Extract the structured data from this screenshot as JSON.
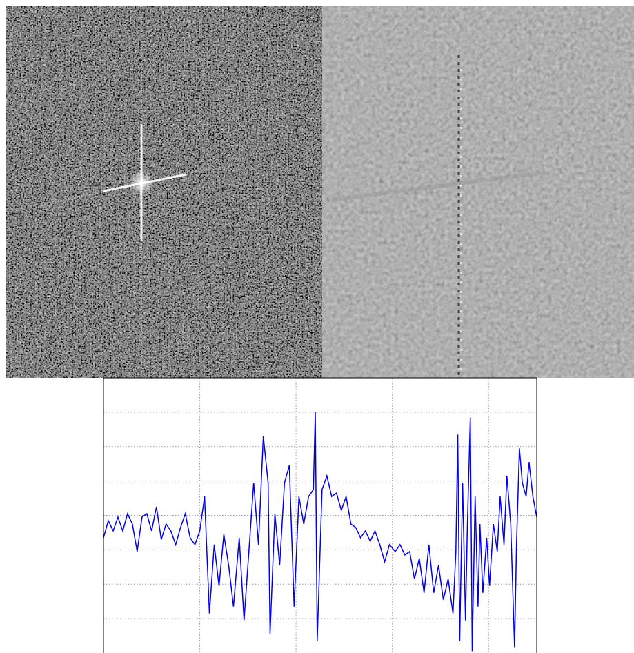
{
  "chart_data": {
    "type": "line",
    "x": [
      0,
      0.05,
      0.1,
      0.15,
      0.2,
      0.25,
      0.3,
      0.35,
      0.4,
      0.45,
      0.5,
      0.55,
      0.6,
      0.65,
      0.7,
      0.75,
      0.8,
      0.85,
      0.9,
      0.95,
      1.0,
      1.05,
      1.1,
      1.15,
      1.2,
      1.25,
      1.3,
      1.35,
      1.41,
      1.46,
      1.51,
      1.56,
      1.61,
      1.66,
      1.71,
      1.73,
      1.78,
      1.83,
      1.88,
      1.93,
      1.98,
      2.03,
      2.08,
      2.13,
      2.18,
      2.2,
      2.22,
      2.27,
      2.32,
      2.37,
      2.42,
      2.47,
      2.52,
      2.57,
      2.62,
      2.67,
      2.72,
      2.77,
      2.82,
      2.87,
      2.92,
      2.97,
      3.03,
      3.08,
      3.13,
      3.18,
      3.23,
      3.28,
      3.33,
      3.38,
      3.43,
      3.48,
      3.53,
      3.58,
      3.63,
      3.66,
      3.68,
      3.7,
      3.73,
      3.76,
      3.78,
      3.81,
      3.83,
      3.86,
      3.89,
      3.91,
      3.94,
      3.98,
      4.01,
      4.05,
      4.09,
      4.12,
      4.16,
      4.19,
      4.23,
      4.27,
      4.29,
      4.32,
      4.35,
      4.39,
      4.42,
      4.46,
      4.5
    ],
    "series": [
      {
        "color": "#0000ee",
        "values": [
          3.35,
          3.85,
          3.55,
          3.95,
          3.55,
          4.05,
          3.75,
          2.95,
          3.95,
          4.05,
          3.55,
          4.25,
          3.3,
          3.75,
          3.55,
          3.15,
          3.65,
          4.05,
          3.35,
          3.15,
          3.55,
          4.55,
          1.15,
          3.15,
          1.95,
          3.45,
          2.55,
          1.35,
          3.35,
          0.95,
          2.95,
          4.95,
          3.15,
          6.3,
          4.95,
          0.55,
          4.05,
          2.55,
          4.95,
          5.45,
          1.35,
          4.55,
          3.75,
          4.55,
          4.75,
          7.0,
          0.35,
          4.75,
          5.15,
          4.55,
          4.65,
          4.15,
          4.55,
          3.75,
          3.65,
          3.35,
          3.55,
          3.25,
          3.55,
          3.15,
          2.65,
          3.15,
          2.95,
          3.15,
          2.85,
          2.95,
          2.15,
          2.75,
          1.75,
          3.15,
          1.75,
          2.55,
          1.55,
          2.15,
          1.15,
          2.95,
          6.35,
          0.35,
          4.95,
          0.95,
          3.75,
          6.85,
          0.05,
          4.55,
          1.35,
          3.75,
          1.75,
          3.35,
          1.95,
          3.75,
          2.95,
          4.55,
          3.15,
          5.15,
          3.75,
          0.15,
          3.15,
          5.95,
          4.95,
          4.55,
          5.55,
          4.55,
          3.95
        ]
      }
    ],
    "xlim": [
      0,
      4.5
    ],
    "ylim": [
      0,
      8
    ],
    "xticks": [
      1,
      2,
      3,
      4
    ],
    "yticks": [
      1,
      2,
      3,
      4,
      5,
      6,
      7
    ],
    "grid": true
  }
}
